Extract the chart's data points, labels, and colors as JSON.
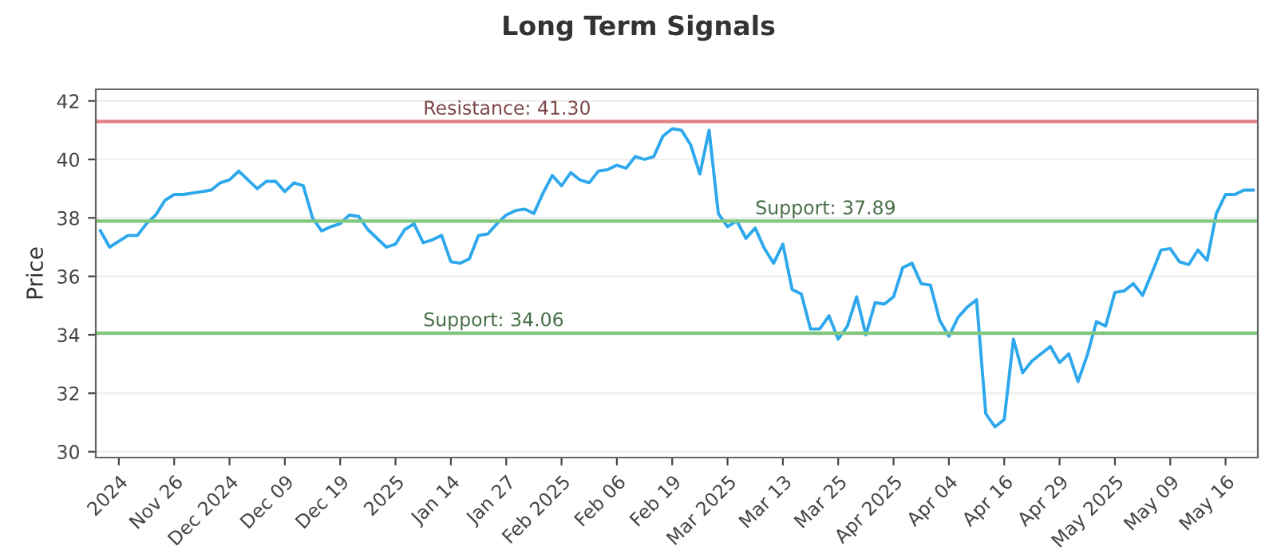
{
  "chart_data": {
    "type": "line",
    "title": "Long Term Signals",
    "ylabel": "Price",
    "categories": [
      null,
      null,
      "2024",
      null,
      null,
      null,
      null,
      null,
      "Nov 26",
      null,
      null,
      null,
      null,
      null,
      "Dec 2024",
      null,
      null,
      null,
      null,
      null,
      "Dec 09",
      null,
      null,
      null,
      null,
      null,
      "Dec 19",
      null,
      null,
      null,
      null,
      null,
      "2025",
      null,
      null,
      null,
      null,
      null,
      "Jan 14",
      null,
      null,
      null,
      null,
      null,
      "Jan 27",
      null,
      null,
      null,
      null,
      null,
      "Feb 2025",
      null,
      null,
      null,
      null,
      null,
      "Feb 06",
      null,
      null,
      null,
      null,
      null,
      "Feb 19",
      null,
      null,
      null,
      null,
      null,
      "Mar 2025",
      null,
      null,
      null,
      null,
      null,
      "Mar 13",
      null,
      null,
      null,
      null,
      null,
      "Mar 25",
      null,
      null,
      null,
      null,
      null,
      "Apr 2025",
      null,
      null,
      null,
      null,
      null,
      "Apr 04",
      null,
      null,
      null,
      null,
      null,
      "Apr 16",
      null,
      null,
      null,
      null,
      null,
      "Apr 29",
      null,
      null,
      null,
      null,
      null,
      "May 2025",
      null,
      null,
      null,
      null,
      null,
      "May 09",
      null,
      null,
      null,
      null,
      null,
      "May 16",
      null,
      null,
      null
    ],
    "series": [
      {
        "color": "#2ea8ec",
        "values": [
          37.56,
          37.0,
          37.2,
          37.4,
          37.4,
          37.8,
          38.1,
          38.6,
          38.8,
          38.8,
          38.85,
          38.9,
          38.95,
          39.2,
          39.3,
          39.6,
          39.3,
          39.0,
          39.25,
          39.25,
          38.9,
          39.2,
          39.1,
          38.0,
          37.55,
          37.7,
          37.8,
          38.1,
          38.05,
          37.6,
          37.3,
          37.0,
          37.1,
          37.6,
          37.8,
          37.15,
          37.25,
          37.4,
          36.5,
          36.45,
          36.6,
          37.4,
          37.45,
          37.8,
          38.1,
          38.25,
          38.3,
          38.15,
          38.85,
          39.45,
          39.1,
          39.55,
          39.3,
          39.2,
          39.6,
          39.65,
          39.8,
          39.7,
          40.1,
          40.0,
          40.1,
          40.8,
          41.05,
          41.0,
          40.5,
          39.5,
          41.0,
          38.15,
          37.7,
          37.9,
          37.3,
          37.65,
          36.95,
          36.45,
          37.1,
          35.55,
          35.4,
          34.2,
          34.2,
          34.65,
          33.85,
          34.3,
          35.3,
          34.0,
          35.1,
          35.05,
          35.3,
          36.3,
          36.45,
          35.75,
          35.7,
          34.5,
          33.95,
          34.6,
          34.95,
          35.2,
          31.3,
          30.85,
          31.1,
          33.85,
          32.7,
          33.1,
          33.35,
          33.6,
          33.05,
          33.35,
          32.4,
          33.3,
          34.45,
          34.3,
          35.45,
          35.5,
          35.75,
          35.35,
          36.1,
          36.9,
          36.95,
          36.5,
          36.4,
          36.9,
          36.55,
          38.15,
          38.8,
          38.8,
          38.95,
          38.95
        ]
      }
    ],
    "ylim": [
      29.8,
      42.4
    ],
    "yticks": [
      30,
      32,
      34,
      36,
      38,
      40,
      42
    ],
    "grid": "y",
    "ref_lines": [
      {
        "axis": "y",
        "value": 41.3,
        "label": "Resistance: 41.30",
        "color": "#e08080"
      },
      {
        "axis": "y",
        "value": 37.89,
        "label": "Support: 37.89",
        "color": "#80c880"
      },
      {
        "axis": "y",
        "value": 34.06,
        "label": "Support: 34.06",
        "color": "#80c880"
      }
    ]
  }
}
